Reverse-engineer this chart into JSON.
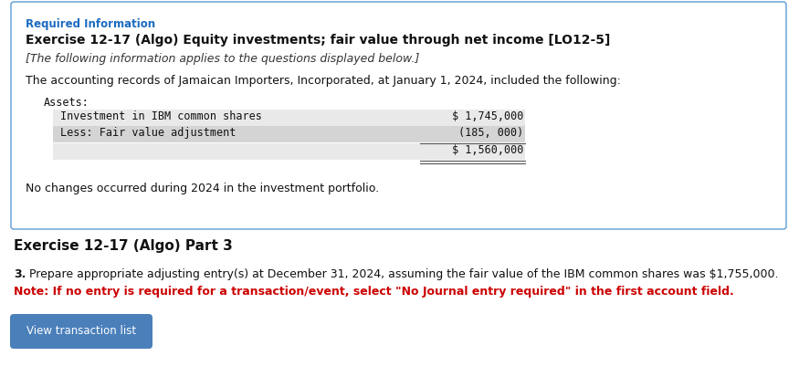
{
  "bg_color": "#ffffff",
  "border_color": "#5b9bd5",
  "required_info_text": "Required Information",
  "required_info_color": "#1a6bbf",
  "title": "Exercise 12-17 (Algo) Equity investments; fair value through net income [LO12-5]",
  "subtitle": "[The following information applies to the questions displayed below.]",
  "intro_text": "The accounting records of Jamaican Importers, Incorporated, at January 1, 2024, included the following:",
  "assets_label": "Assets:",
  "row1_label": "Investment in IBM common shares",
  "row1_value": "$ 1,745,000",
  "row2_label": "Less: Fair value adjustment",
  "row2_value": "(185, 000)",
  "row3_value": "$ 1,560,000",
  "no_changes_text": "No changes occurred during 2024 in the investment portfolio.",
  "part3_heading": "Exercise 12-17 (Algo) Part 3",
  "question_num": "3.",
  "question_text": " Prepare appropriate adjusting entry(s) at December 31, 2024, assuming the fair value of the IBM common shares was $1,755,000.",
  "note_text": "Note: If no entry is required for a transaction/event, select \"No Journal entry required\" in the first account field.",
  "note_color": "#cc0000",
  "button_text": "View transaction list",
  "button_bg": "#4a7fba",
  "button_text_color": "#ffffff",
  "row1_bg": "#e9e9e9",
  "row2_bg": "#d4d4d4",
  "row3_bg": "#e9e9e9",
  "table_line_color": "#555555"
}
